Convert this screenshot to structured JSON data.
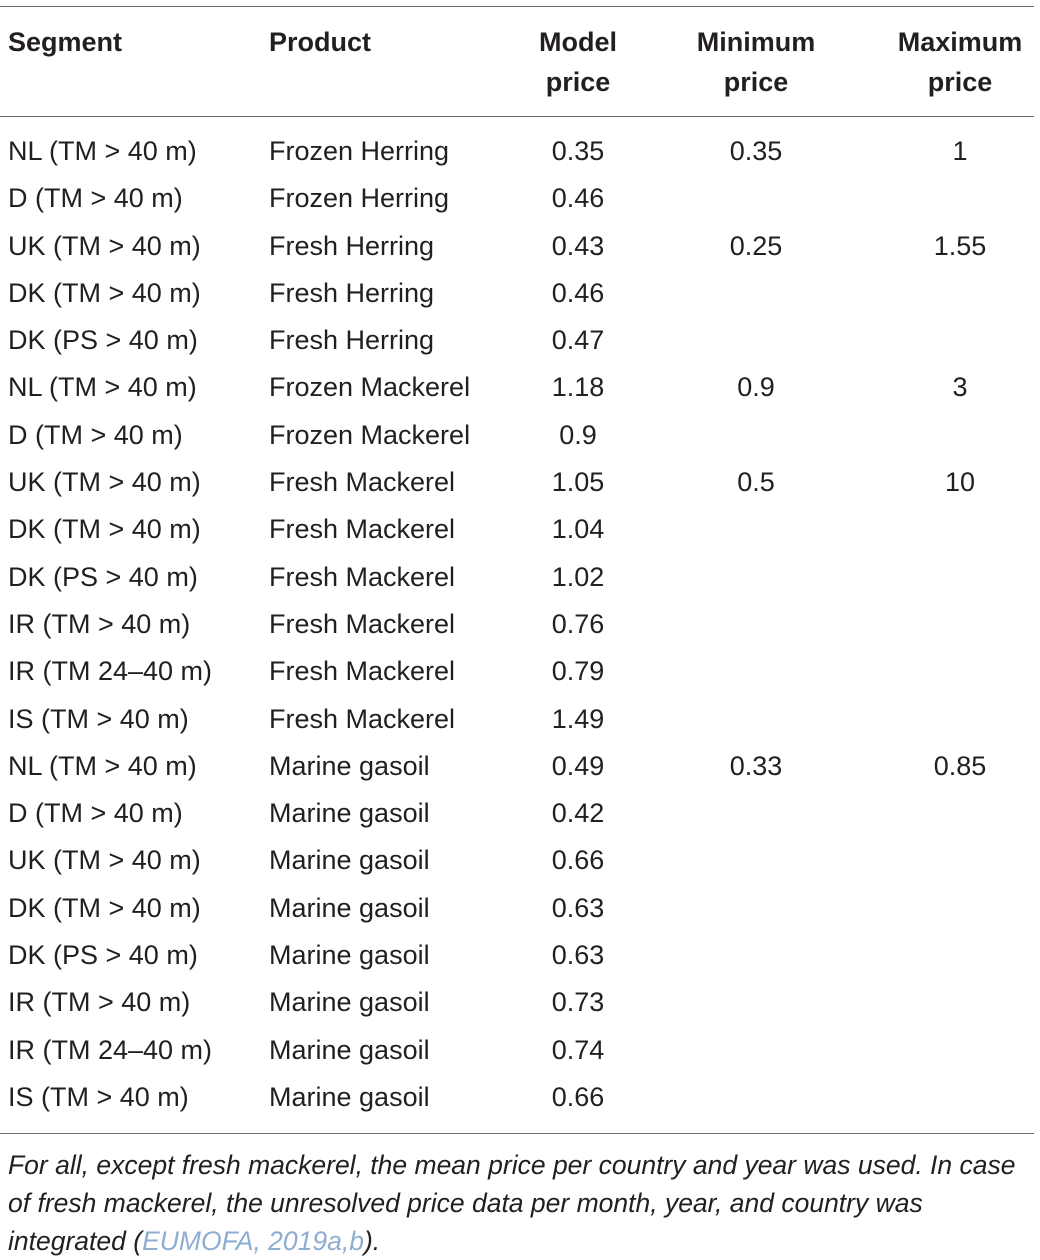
{
  "table": {
    "headers": {
      "segment": "Segment",
      "product": "Product",
      "model_price_line1": "Model",
      "model_price_line2": "price",
      "minimum_price_line1": "Minimum",
      "minimum_price_line2": "price",
      "maximum_price_line1": "Maximum",
      "maximum_price_line2": "price"
    },
    "rows": [
      {
        "segment": "NL (TM > 40 m)",
        "product": "Frozen Herring",
        "model_price": "0.35",
        "minimum_price": "0.35",
        "maximum_price": "1"
      },
      {
        "segment": "D (TM > 40 m)",
        "product": "Frozen Herring",
        "model_price": "0.46",
        "minimum_price": "",
        "maximum_price": ""
      },
      {
        "segment": "UK (TM > 40 m)",
        "product": "Fresh Herring",
        "model_price": "0.43",
        "minimum_price": "0.25",
        "maximum_price": "1.55"
      },
      {
        "segment": "DK (TM > 40 m)",
        "product": "Fresh Herring",
        "model_price": "0.46",
        "minimum_price": "",
        "maximum_price": ""
      },
      {
        "segment": "DK (PS > 40 m)",
        "product": "Fresh Herring",
        "model_price": "0.47",
        "minimum_price": "",
        "maximum_price": ""
      },
      {
        "segment": "NL (TM > 40 m)",
        "product": "Frozen Mackerel",
        "model_price": "1.18",
        "minimum_price": "0.9",
        "maximum_price": "3"
      },
      {
        "segment": "D (TM > 40 m)",
        "product": "Frozen Mackerel",
        "model_price": "0.9",
        "minimum_price": "",
        "maximum_price": ""
      },
      {
        "segment": "UK (TM > 40 m)",
        "product": "Fresh Mackerel",
        "model_price": "1.05",
        "minimum_price": "0.5",
        "maximum_price": "10"
      },
      {
        "segment": "DK (TM > 40 m)",
        "product": "Fresh Mackerel",
        "model_price": "1.04",
        "minimum_price": "",
        "maximum_price": ""
      },
      {
        "segment": "DK (PS > 40 m)",
        "product": "Fresh Mackerel",
        "model_price": "1.02",
        "minimum_price": "",
        "maximum_price": ""
      },
      {
        "segment": "IR (TM > 40 m)",
        "product": "Fresh Mackerel",
        "model_price": "0.76",
        "minimum_price": "",
        "maximum_price": ""
      },
      {
        "segment": "IR (TM 24–40 m)",
        "product": "Fresh Mackerel",
        "model_price": "0.79",
        "minimum_price": "",
        "maximum_price": ""
      },
      {
        "segment": "IS (TM > 40 m)",
        "product": "Fresh Mackerel",
        "model_price": "1.49",
        "minimum_price": "",
        "maximum_price": ""
      },
      {
        "segment": "NL (TM > 40 m)",
        "product": "Marine gasoil",
        "model_price": "0.49",
        "minimum_price": "0.33",
        "maximum_price": "0.85"
      },
      {
        "segment": "D (TM > 40 m)",
        "product": "Marine gasoil",
        "model_price": "0.42",
        "minimum_price": "",
        "maximum_price": ""
      },
      {
        "segment": "UK (TM > 40 m)",
        "product": "Marine gasoil",
        "model_price": "0.66",
        "minimum_price": "",
        "maximum_price": ""
      },
      {
        "segment": "DK (TM > 40 m)",
        "product": "Marine gasoil",
        "model_price": "0.63",
        "minimum_price": "",
        "maximum_price": ""
      },
      {
        "segment": "DK (PS > 40 m)",
        "product": "Marine gasoil",
        "model_price": "0.63",
        "minimum_price": "",
        "maximum_price": ""
      },
      {
        "segment": "IR (TM > 40 m)",
        "product": "Marine gasoil",
        "model_price": "0.73",
        "minimum_price": "",
        "maximum_price": ""
      },
      {
        "segment": "IR (TM 24–40 m)",
        "product": "Marine gasoil",
        "model_price": "0.74",
        "minimum_price": "",
        "maximum_price": ""
      },
      {
        "segment": "IS (TM > 40 m)",
        "product": "Marine gasoil",
        "model_price": "0.66",
        "minimum_price": "",
        "maximum_price": ""
      }
    ]
  },
  "footnote": {
    "text_before": "For all, except fresh mackerel, the mean price per country and year was used. In case of fresh mackerel, the unresolved price data per month, year, and country was integrated (",
    "citation": "EUMOFA, 2019a,b",
    "text_after": ")."
  },
  "colors": {
    "text": "#231f20",
    "rule": "#6d6e71",
    "citation_link": "#8dadd1"
  }
}
